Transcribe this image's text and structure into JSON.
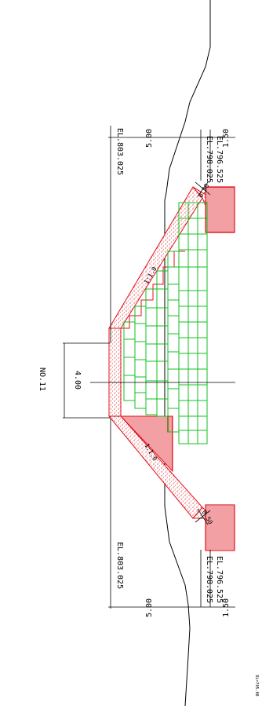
{
  "section_no": "NO.11",
  "top_width": "4.00",
  "slope_left": "1:1.0",
  "slope_right": "1:1.0",
  "berm_left": "0.50",
  "berm_right": "0.50",
  "el_top_left": "EL.803.025",
  "el_top_right": "EL.803.025",
  "el_mid_left": "EL.798.025",
  "el_mid_right": "EL.798.025",
  "el_base_left": "EL.796.525",
  "el_base_right": "EL.796.525",
  "height_upper_left": "5.00",
  "height_upper_right": "5.00",
  "height_lower_left": "1.50",
  "height_lower_right": "1.50",
  "datum": "DL=705.00",
  "colors": {
    "red": "#e0101a",
    "green": "#10c020",
    "line": "#000000"
  }
}
